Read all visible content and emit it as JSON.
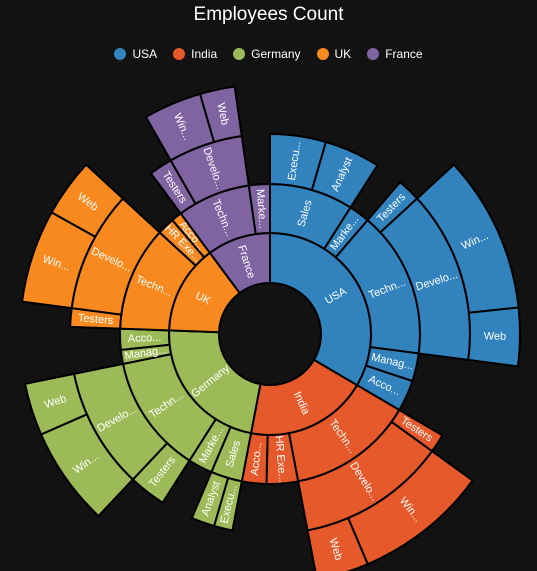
{
  "chart_data": {
    "type": "sunburst",
    "title": "Employees Count",
    "legend_position": "top",
    "legend": [
      {
        "name": "USA",
        "color": "#3182bd"
      },
      {
        "name": "India",
        "color": "#e6592a"
      },
      {
        "name": "Germany",
        "color": "#9cbb58"
      },
      {
        "name": "UK",
        "color": "#f7891e"
      },
      {
        "name": "France",
        "color": "#8064a2"
      }
    ],
    "root": [
      {
        "label": "USA",
        "color": "#3182bd",
        "children": [
          {
            "label": "Sales",
            "children": [
              {
                "label": "Executive",
                "display": "Execu...",
                "value": 12
              },
              {
                "label": "Analyst",
                "display": "Analyst",
                "value": 12
              }
            ]
          },
          {
            "label": "Marketing",
            "display": "Marke...",
            "value": 6
          },
          {
            "label": "Technical",
            "display": "Techn...",
            "children": [
              {
                "label": "Testers",
                "display": "Testers",
                "value": 5
              },
              {
                "label": "Development",
                "display": "Develo...",
                "children": [
                  {
                    "label": "Windows",
                    "display": "Win...",
                    "value": 27
                  },
                  {
                    "label": "Web",
                    "display": "Web",
                    "value": 10
                  }
                ]
              }
            ]
          },
          {
            "label": "Management",
            "display": "Manag...",
            "value": 8
          },
          {
            "label": "Accounts",
            "display": "Acco...",
            "value": 9
          }
        ]
      },
      {
        "label": "India",
        "color": "#e6592a",
        "children": [
          {
            "label": "Technical",
            "display": "Techn...",
            "children": [
              {
                "label": "Testers",
                "display": "Testers",
                "value": 4
              },
              {
                "label": "Development",
                "display": "Develo...",
                "children": [
                  {
                    "label": "Windows",
                    "display": "Win...",
                    "value": 23
                  },
                  {
                    "label": "Web",
                    "display": "Web",
                    "value": 9
                  }
                ]
              }
            ]
          },
          {
            "label": "HR Executives",
            "display": "HR Exe...",
            "value": 9
          },
          {
            "label": "Accounts",
            "display": "Acco...",
            "value": 7
          }
        ]
      },
      {
        "label": "Germany",
        "color": "#9cbb58",
        "children": [
          {
            "label": "Sales",
            "children": [
              {
                "label": "Executive",
                "display": "Execu...",
                "value": 4
              },
              {
                "label": "Analyst",
                "display": "Analyst",
                "value": 5
              }
            ]
          },
          {
            "label": "Marketing",
            "display": "Marke...",
            "value": 7
          },
          {
            "label": "Technical",
            "display": "Techn...",
            "children": [
              {
                "label": "Testers",
                "display": "Testers",
                "value": 8
              },
              {
                "label": "Development",
                "display": "Develo...",
                "children": [
                  {
                    "label": "Windows",
                    "display": "Win...",
                    "value": 17
                  },
                  {
                    "label": "Web",
                    "display": "Web",
                    "value": 9
                  }
                ]
              }
            ]
          },
          {
            "label": "Management",
            "display": "Manag...",
            "value": 4
          },
          {
            "label": "Accounts",
            "display": "Acco...",
            "value": 6
          }
        ]
      },
      {
        "label": "UK",
        "color": "#f7891e",
        "children": [
          {
            "label": "Technical",
            "display": "Techn...",
            "children": [
              {
                "label": "Testers",
                "display": "Testers",
                "value": 4
              },
              {
                "label": "Development",
                "display": "Develo...",
                "children": [
                  {
                    "label": "Windows",
                    "display": "Win...",
                    "value": 16
                  },
                  {
                    "label": "Web",
                    "display": "Web",
                    "value": 10
                  }
                ]
              }
            ]
          },
          {
            "label": "HR Executives",
            "display": "HR Exe...",
            "value": 5
          },
          {
            "label": "Accounts",
            "display": "Acco...",
            "value": 3
          }
        ]
      },
      {
        "label": "France",
        "color": "#8064a2",
        "children": [
          {
            "label": "Technical",
            "display": "Techn...",
            "children": [
              {
                "label": "Testers",
                "display": "Testers",
                "value": 5
              },
              {
                "label": "Development",
                "display": "Develo...",
                "children": [
                  {
                    "label": "Windows",
                    "display": "Win...",
                    "value": 10
                  },
                  {
                    "label": "Web",
                    "display": "Web",
                    "value": 6
                  }
                ]
              }
            ]
          },
          {
            "label": "Marketing",
            "display": "Marke...",
            "value": 6
          }
        ]
      }
    ]
  }
}
